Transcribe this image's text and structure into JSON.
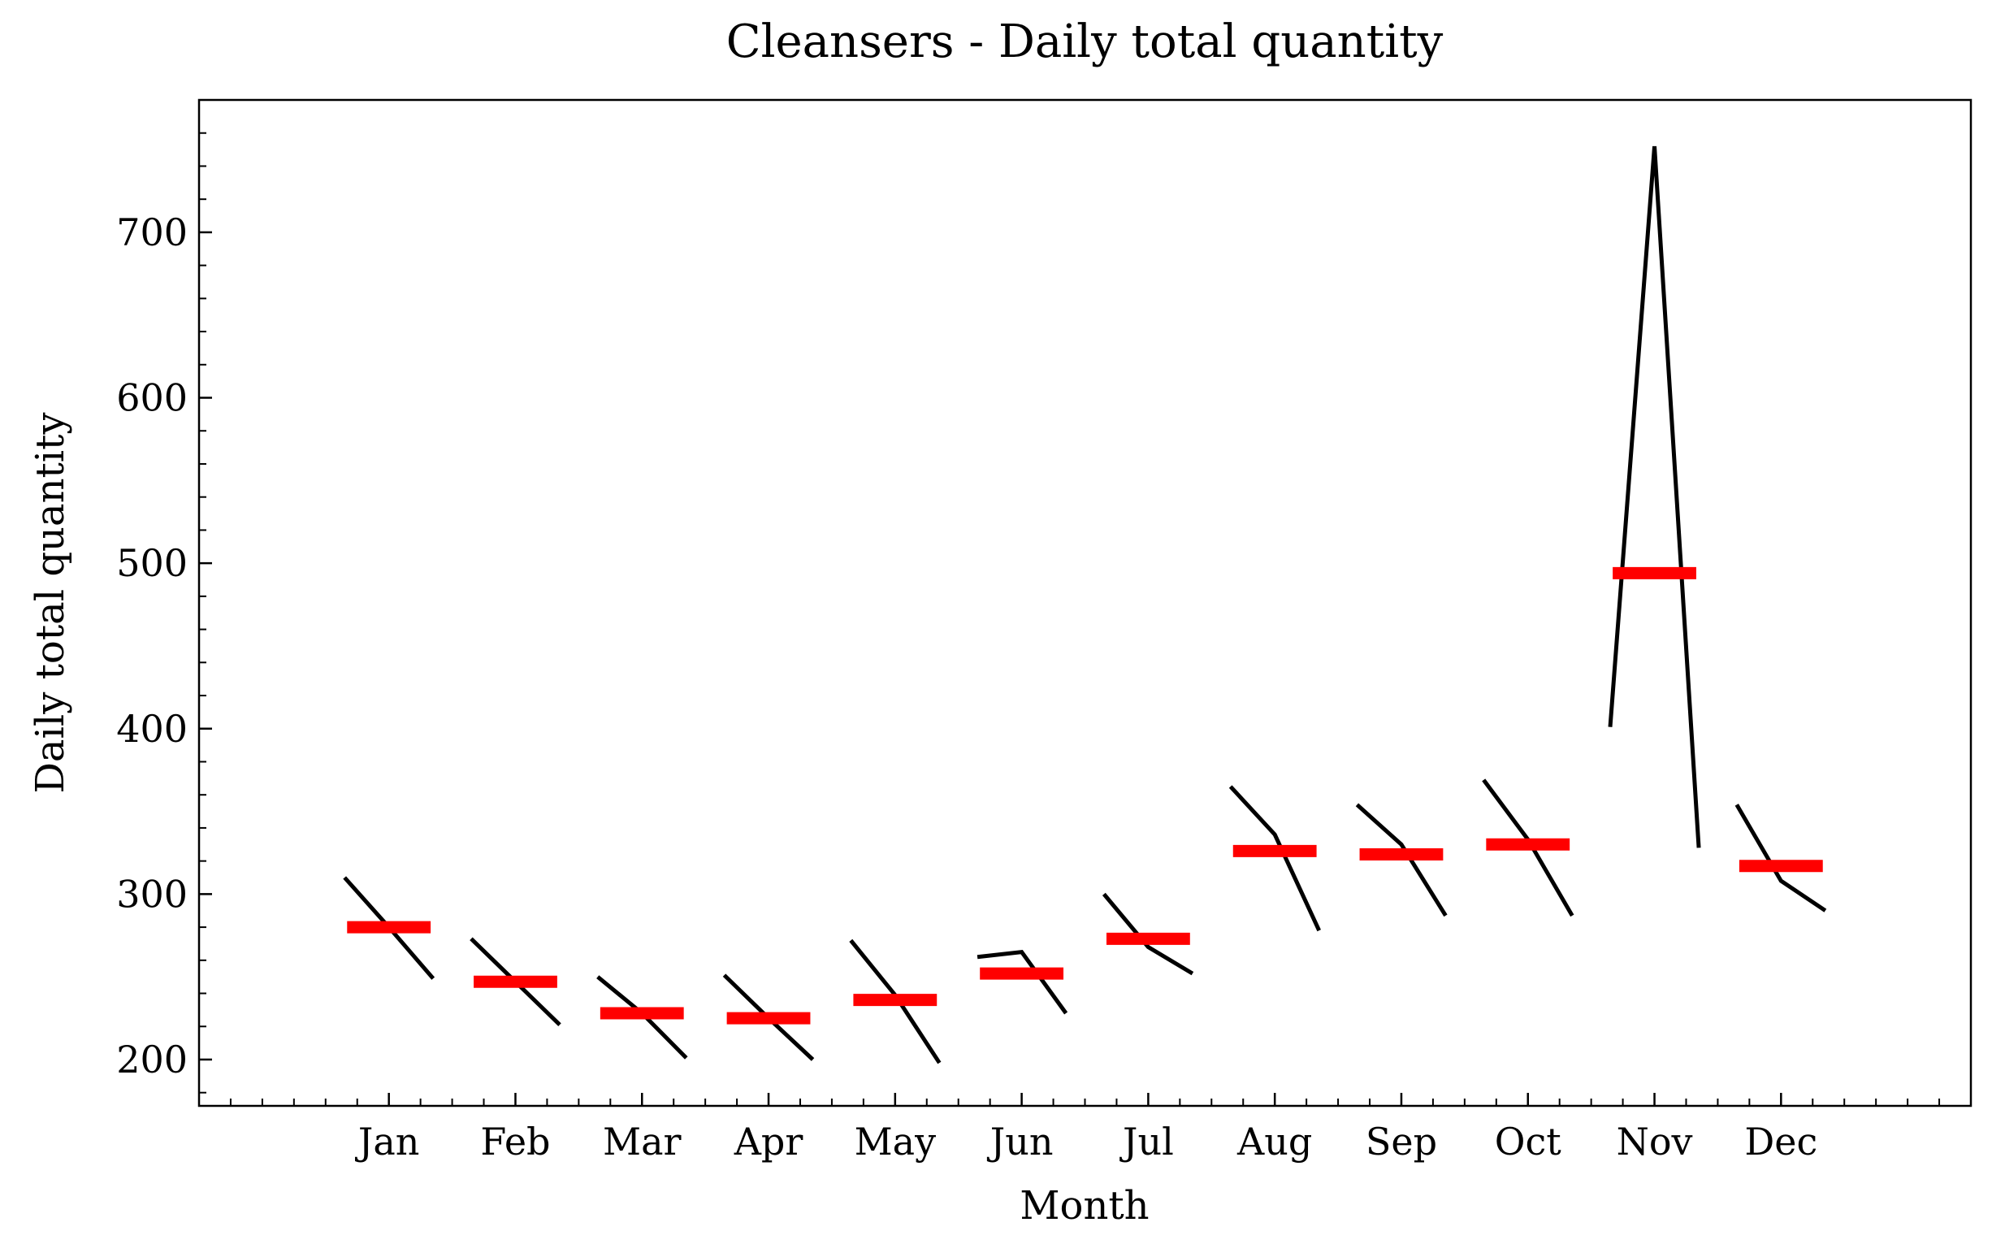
{
  "chart_data": {
    "type": "month_subseries",
    "title": "Cleansers - Daily total quantity",
    "xlabel": "Month",
    "ylabel": "Daily total quantity",
    "categories": [
      "Jan",
      "Feb",
      "Mar",
      "Apr",
      "May",
      "Jun",
      "Jul",
      "Aug",
      "Sep",
      "Oct",
      "Nov",
      "Dec"
    ],
    "values": [
      [
        310,
        280,
        249
      ],
      [
        273,
        247,
        221
      ],
      [
        250,
        228,
        201
      ],
      [
        251,
        225,
        200
      ],
      [
        272,
        239,
        198
      ],
      [
        262,
        265,
        228
      ],
      [
        300,
        268,
        252
      ],
      [
        365,
        336,
        278
      ],
      [
        354,
        330,
        287
      ],
      [
        369,
        333,
        287
      ],
      [
        401,
        752,
        328
      ],
      [
        354,
        308,
        290
      ]
    ],
    "means": [
      280,
      247,
      228,
      225,
      236,
      252,
      273,
      326,
      324,
      330,
      494,
      317
    ],
    "line_color": "#000000",
    "mean_color": "#ff0000",
    "xlim": [
      -0.5,
      13.5
    ],
    "ylim": [
      172,
      780
    ],
    "yticks": [
      200,
      300,
      400,
      500,
      600,
      700
    ],
    "yminorticks": [
      180,
      220,
      240,
      260,
      280,
      320,
      340,
      360,
      380,
      420,
      440,
      460,
      480,
      520,
      540,
      560,
      580,
      620,
      640,
      660,
      680,
      720,
      740,
      760,
      780
    ],
    "xminorticks": [
      -0.25,
      0,
      0.25,
      0.5,
      0.75,
      1.25,
      1.5,
      1.75,
      2.25,
      2.5,
      2.75,
      3.25,
      3.5,
      3.75,
      4.25,
      4.5,
      4.75,
      5.25,
      5.5,
      5.75,
      6.25,
      6.5,
      6.75,
      7.25,
      7.5,
      7.75,
      8.25,
      8.5,
      8.75,
      9.25,
      9.5,
      9.75,
      10.25,
      10.5,
      10.75,
      11.25,
      11.5,
      11.75,
      12.25,
      12.5,
      12.75,
      13,
      13.25
    ]
  }
}
